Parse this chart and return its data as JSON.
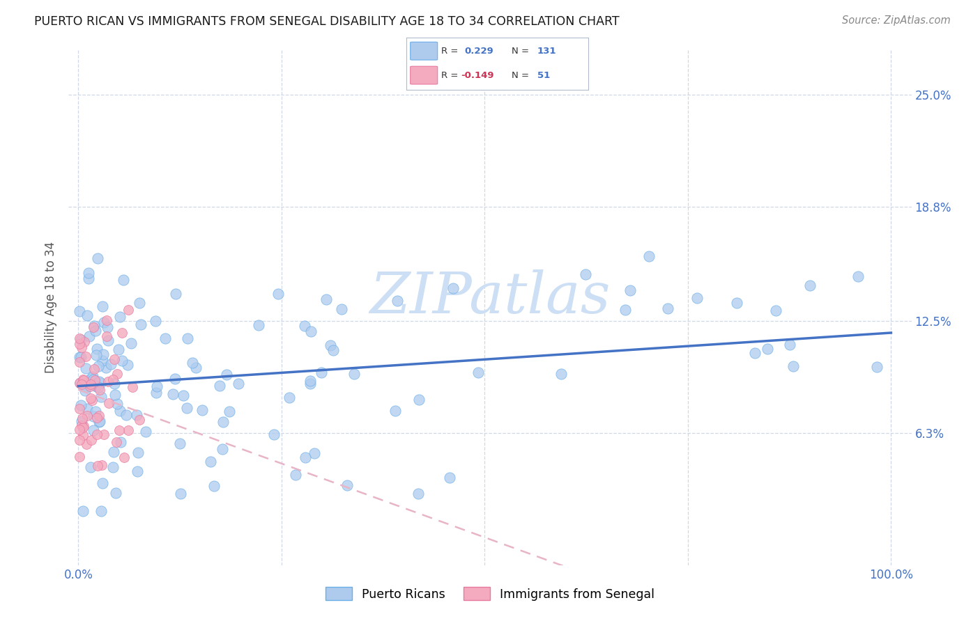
{
  "title": "PUERTO RICAN VS IMMIGRANTS FROM SENEGAL DISABILITY AGE 18 TO 34 CORRELATION CHART",
  "source": "Source: ZipAtlas.com",
  "ylabel": "Disability Age 18 to 34",
  "ytick_labels": [
    "6.3%",
    "12.5%",
    "18.8%",
    "25.0%"
  ],
  "ytick_values": [
    0.063,
    0.125,
    0.188,
    0.25
  ],
  "xlim": [
    0.0,
    1.0
  ],
  "ylim": [
    0.0,
    0.27
  ],
  "blue_R": 0.229,
  "blue_N": 131,
  "pink_R": -0.149,
  "pink_N": 51,
  "blue_color": "#aecbee",
  "blue_edge_color": "#6aaee8",
  "pink_color": "#f4aabf",
  "pink_edge_color": "#e87aa0",
  "blue_line_color": "#4472c4",
  "pink_line_color": "#e8b4c8",
  "watermark_color": "#cddff5",
  "legend_puerto_rico": "Puerto Ricans",
  "legend_senegal": "Immigrants from Senegal",
  "title_color": "#1a1a1a",
  "axis_label_color": "#555555",
  "tick_color": "#4472c4",
  "grid_color": "#d0d8e8"
}
